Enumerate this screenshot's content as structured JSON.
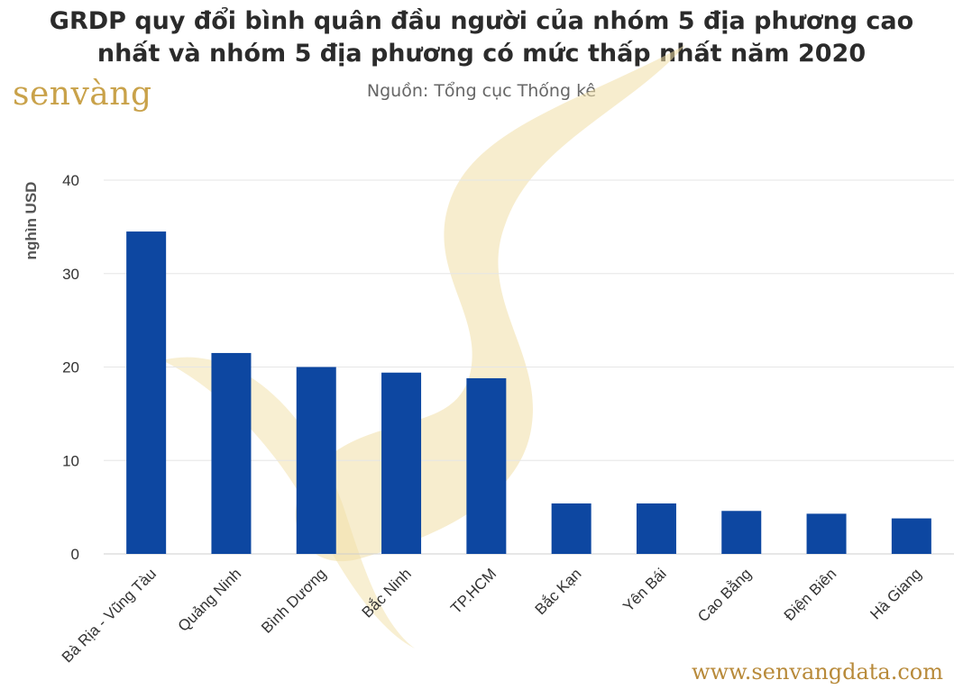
{
  "header": {
    "title_line1": "GRDP quy đổi bình quân đầu người của nhóm 5 địa phương cao",
    "title_line2": "nhất và nhóm 5 địa phương có mức thấp nhất năm 2020",
    "subtitle": "Nguồn: Tổng cục Thống kê"
  },
  "branding": {
    "logo_text": "senvàng",
    "website": "www.senvangdata.com"
  },
  "colors": {
    "bar": "#0d47a1",
    "grid": "#e6e6e6",
    "watermark": "#f1dfa6"
  },
  "chart_data": {
    "type": "bar",
    "title": "GRDP quy đổi bình quân đầu người của nhóm 5 địa phương cao nhất và nhóm 5 địa phương có mức thấp nhất năm 2020",
    "subtitle": "Nguồn: Tổng cục Thống kê",
    "xlabel": "",
    "ylabel": "nghìn USD",
    "ylim": [
      0,
      40
    ],
    "yticks": [
      0,
      10,
      20,
      30,
      40
    ],
    "grid": true,
    "categories": [
      "Bà Rịa - Vũng Tàu",
      "Quảng Ninh",
      "Bình Dương",
      "Bắc Ninh",
      "TP.HCM",
      "Bắc Kạn",
      "Yên Bái",
      "Cao Bằng",
      "Điện Biên",
      "Hà Giang"
    ],
    "values": [
      34.5,
      21.5,
      20.0,
      19.4,
      18.8,
      5.4,
      5.4,
      4.6,
      4.3,
      3.8
    ]
  }
}
